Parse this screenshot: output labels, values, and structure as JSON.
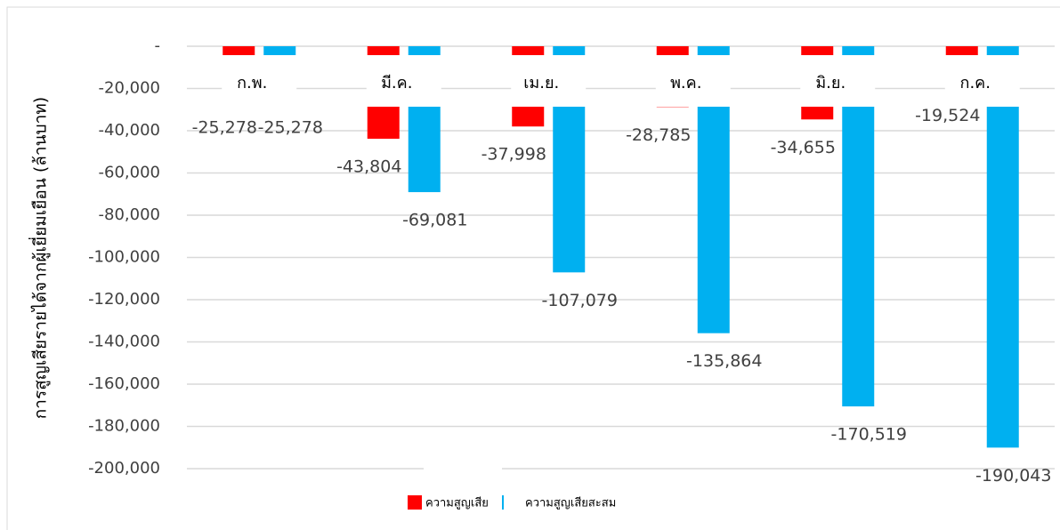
{
  "chart_data": {
    "type": "bar",
    "ylabel": "การสูญเสียรายได้จากผู้เยี่ยมเยือน (ล้านบาท)",
    "categories": [
      "ก.พ.",
      "มี.ค.",
      "เม.ย.",
      "พ.ค.",
      "มิ.ย.",
      "ก.ค."
    ],
    "series": [
      {
        "name": "ความสูญเสีย",
        "color": "#ff0000",
        "values": [
          -25278,
          -43804,
          -37998,
          -28785,
          -34655,
          -19524
        ],
        "value_labels": [
          "-25,278",
          "-43,804",
          "-37,998",
          "-28,785",
          "-34,655",
          "-19,524"
        ]
      },
      {
        "name": "ความสูญเสียสะสม",
        "color": "#00b0f0",
        "values": [
          -25278,
          -69081,
          -107079,
          -135864,
          -170519,
          -190043
        ],
        "value_labels": [
          "-25,278",
          "-69,081",
          "-107,079",
          "-135,864",
          "-170,519",
          "-190,043"
        ]
      }
    ],
    "ylim": [
      0,
      -200000
    ],
    "yticks": [
      {
        "value": 0,
        "label": "-"
      },
      {
        "value": -20000,
        "label": "-20,000"
      },
      {
        "value": -40000,
        "label": "-40,000"
      },
      {
        "value": -60000,
        "label": "-60,000"
      },
      {
        "value": -80000,
        "label": "-80,000"
      },
      {
        "value": -100000,
        "label": "-100,000"
      },
      {
        "value": -120000,
        "label": "-120,000"
      },
      {
        "value": -140000,
        "label": "-140,000"
      },
      {
        "value": -160000,
        "label": "-160,000"
      },
      {
        "value": -180000,
        "label": "-180,000"
      },
      {
        "value": -200000,
        "label": "-200,000"
      }
    ],
    "grid": true,
    "legend": "bottom"
  }
}
